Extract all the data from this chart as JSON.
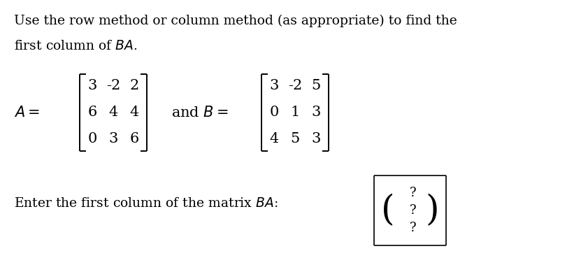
{
  "title_line1": "Use the row method or column method (as appropriate) to find the",
  "title_line2": "first column of $BA$.",
  "A_matrix": [
    [
      3,
      -2,
      2
    ],
    [
      6,
      4,
      4
    ],
    [
      0,
      3,
      6
    ]
  ],
  "B_matrix": [
    [
      3,
      -2,
      5
    ],
    [
      0,
      1,
      3
    ],
    [
      4,
      5,
      3
    ]
  ],
  "question_text": "Enter the first column of the matrix $BA$:",
  "answer_placeholder": [
    "?",
    "?",
    "?"
  ],
  "bg_color": "#ffffff",
  "text_color": "#000000",
  "font_size_title": 13.5,
  "font_size_matrix": 15,
  "font_size_label": 15,
  "font_size_question": 13.5,
  "font_size_paren": 40,
  "font_size_qmark": 13
}
